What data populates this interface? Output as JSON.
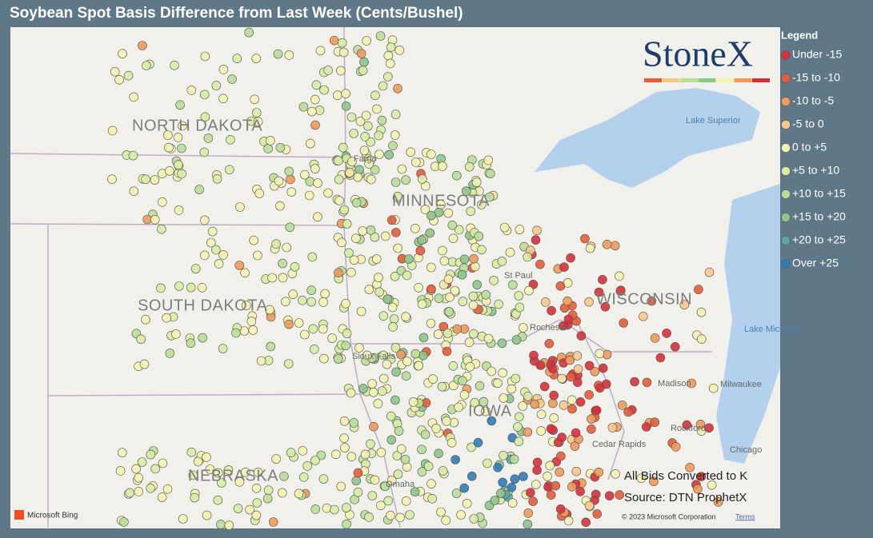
{
  "title": "Soybean Spot Basis Difference from Last Week (Cents/Bushel)",
  "logo": "StoneX",
  "legend": {
    "title": "Legend",
    "items": [
      {
        "label": "Under -15",
        "color": "#d7303b"
      },
      {
        "label": "-15 to -10",
        "color": "#e65c3a"
      },
      {
        "label": "-10 to -5",
        "color": "#f09a5a"
      },
      {
        "label": "-5 to 0",
        "color": "#f8c98c"
      },
      {
        "label": "0 to +5",
        "color": "#f3f3b2"
      },
      {
        "label": "+5 to +10",
        "color": "#d8ecA4"
      },
      {
        "label": "+10 to +15",
        "color": "#b9de98"
      },
      {
        "label": "+15 to +20",
        "color": "#8dc58a"
      },
      {
        "label": "+20 to +25",
        "color": "#5aa5a5"
      },
      {
        "label": "Over +25",
        "color": "#2e7cb8"
      }
    ]
  },
  "map": {
    "states": [
      "NORTH DAKOTA",
      "SOUTH DAKOTA",
      "MINNESOTA",
      "WISCONSIN",
      "NEBRASKA",
      "IOWA"
    ],
    "places": [
      "Lake Superior",
      "Lake Michigan",
      "Fargo",
      "St Paul",
      "Rochester",
      "Madison",
      "Milwaukee",
      "Rockford",
      "Chicago",
      "Cedar Rapids",
      "Omaha",
      "Sioux Falls"
    ],
    "notes": [
      "All Bids Converted to K",
      "Source: DTN ProphetX"
    ],
    "provider": "Microsoft Bing",
    "attribution": "© 2023 Microsoft Corporation",
    "terms": "Terms"
  }
}
